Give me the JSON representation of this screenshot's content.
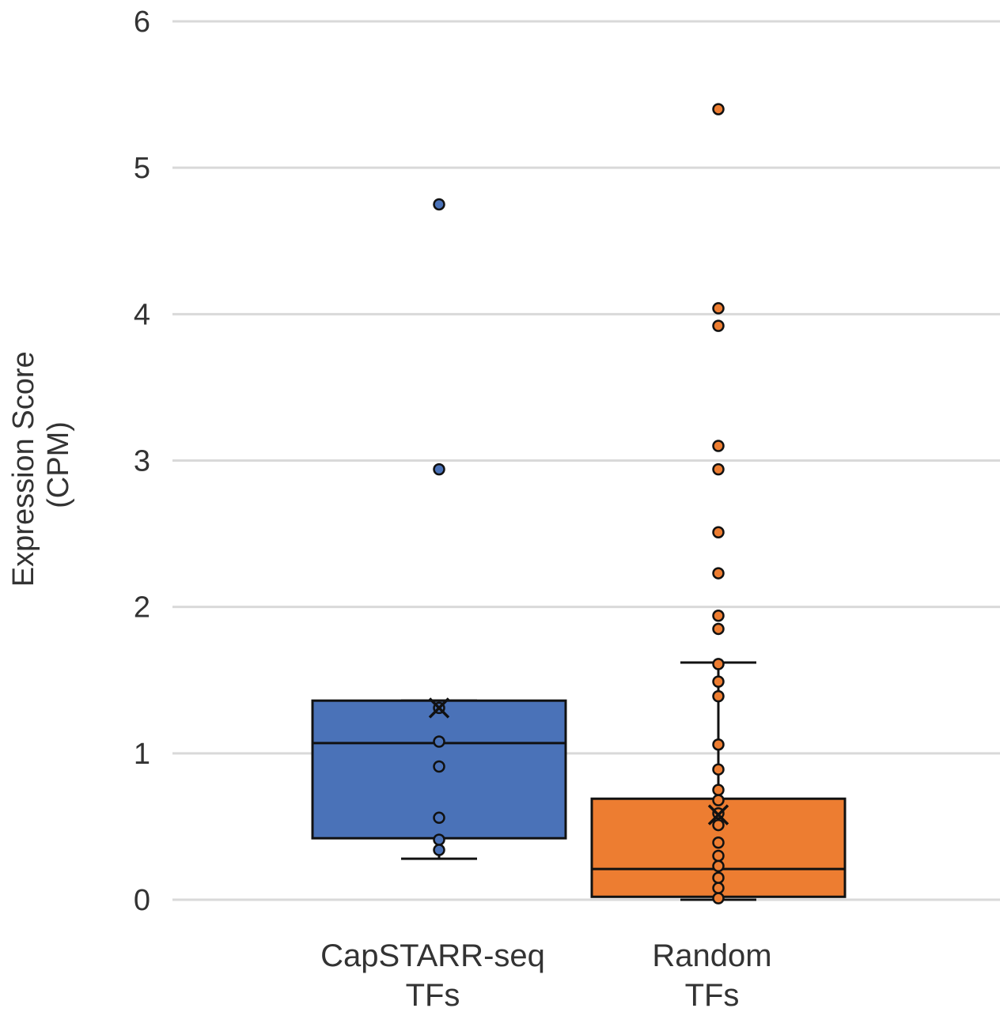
{
  "chart_data": {
    "type": "box",
    "ylabel_lines": [
      "Expression Score",
      "(CPM)"
    ],
    "ylim": [
      0,
      6
    ],
    "yticks": [
      0,
      1,
      2,
      3,
      4,
      5,
      6
    ],
    "grid": true,
    "categories": [
      {
        "lines": [
          "CapSTARR-seq",
          "TFs"
        ]
      },
      {
        "lines": [
          "Random",
          "TFs"
        ]
      }
    ],
    "series": [
      {
        "color": "#4A72B8",
        "q1": 0.42,
        "median": 1.07,
        "q3": 1.36,
        "mean": 1.31,
        "whisker_low": 0.28,
        "whisker_high": 1.36,
        "points": [
          4.75,
          2.94,
          1.31,
          1.08,
          0.91,
          0.56,
          0.41,
          0.34
        ]
      },
      {
        "color": "#ED7D31",
        "q1": 0.02,
        "median": 0.21,
        "q3": 0.69,
        "mean": 0.58,
        "whisker_low": 0.0,
        "whisker_high": 1.62,
        "points": [
          5.4,
          4.04,
          3.92,
          3.1,
          2.94,
          2.51,
          2.23,
          1.94,
          1.85,
          1.61,
          1.49,
          1.39,
          1.06,
          0.89,
          0.75,
          0.68,
          0.59,
          0.51,
          0.39,
          0.3,
          0.23,
          0.15,
          0.08,
          0.01
        ]
      }
    ]
  }
}
